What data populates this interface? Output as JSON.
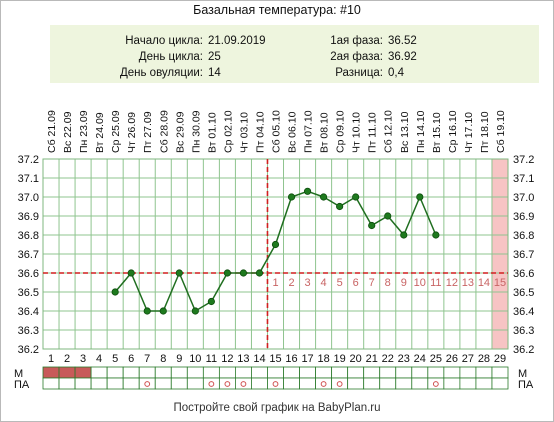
{
  "title": "Базальная температура: #10",
  "info": {
    "cycle_start_label": "Начало цикла:",
    "cycle_start_value": "21.09.2019",
    "cycle_day_label": "День цикла:",
    "cycle_day_value": "25",
    "ovulation_day_label": "День овуляции:",
    "ovulation_day_value": "14",
    "phase1_label": "1ая фаза:",
    "phase1_value": "36.52",
    "phase2_label": "2ая фаза:",
    "phase2_value": "36.92",
    "diff_label": "Разница:",
    "diff_value": "0,4"
  },
  "footer": "Постройте свой график на BabyPlan.ru",
  "row_labels": {
    "m": "М",
    "pa": "ПА"
  },
  "colors": {
    "line": "#1f6e1f",
    "point_fill": "#1e7a1e",
    "grid": "#8fc48f",
    "cover_line": "#d11f1f",
    "post_ov_numbers": "#c86464",
    "today_band": "#f7c4c4",
    "menses_fill": "#c85a5a",
    "pa_circle": "#d05050"
  },
  "chart_data": {
    "type": "line",
    "dates": [
      "Сб 21.09",
      "Вс 22.09",
      "Пн 23.09",
      "Вт 24.09",
      "Ср 25.09",
      "Чт 26.09",
      "Пт 27.09",
      "Сб 28.09",
      "Вс 29.09",
      "Пн 30.09",
      "Вт 01.10",
      "Ср 02.10",
      "Чт 03.10",
      "Пт 04.10",
      "Сб 05.10",
      "Вс 06.10",
      "Пн 07.10",
      "Вт 08.10",
      "Ср 09.10",
      "Чт 10.10",
      "Пт 11.10",
      "Сб 12.10",
      "Вс 13.10",
      "Пн 14.10",
      "Вт 15.10",
      "Ср 16.10",
      "Чт 17.10",
      "Пт 18.10",
      "Сб 19.10"
    ],
    "days": [
      "1",
      "2",
      "3",
      "4",
      "5",
      "6",
      "7",
      "8",
      "9",
      "10",
      "11",
      "12",
      "13",
      "14",
      "15",
      "16",
      "17",
      "18",
      "19",
      "20",
      "21",
      "22",
      "23",
      "24",
      "25",
      "26",
      "27",
      "28",
      "29"
    ],
    "temperatures": [
      null,
      null,
      null,
      null,
      36.5,
      36.6,
      36.4,
      36.4,
      36.6,
      36.4,
      36.45,
      36.6,
      36.6,
      36.6,
      36.75,
      37.0,
      37.03,
      37.0,
      36.95,
      37.0,
      36.85,
      36.9,
      36.8,
      37.0,
      36.8,
      null,
      null,
      null,
      null
    ],
    "y_ticks": [
      "36.2",
      "36.3",
      "36.4",
      "36.5",
      "36.6",
      "36.7",
      "36.8",
      "36.9",
      "37.0",
      "37.1",
      "37.2"
    ],
    "ylim": [
      36.2,
      37.2
    ],
    "coverline": 36.6,
    "ovulation_day": 14,
    "post_ovulation_days": [
      "1",
      "2",
      "3",
      "4",
      "5",
      "6",
      "7",
      "8",
      "9",
      "10",
      "11",
      "12",
      "13",
      "14",
      "15"
    ],
    "highlighted_day": 29,
    "menses_days": [
      1,
      2,
      3
    ],
    "pa_days": [
      7,
      11,
      12,
      13,
      15,
      18,
      19,
      25
    ],
    "grid": true
  }
}
